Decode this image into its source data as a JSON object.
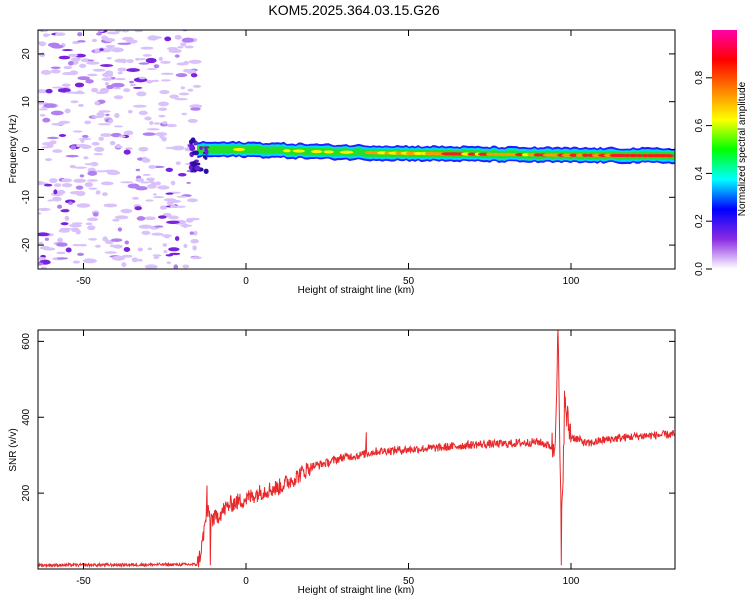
{
  "title": "KOM5.2025.364.03.15.G26",
  "chart_data": [
    {
      "type": "heatmap",
      "xlabel": "Height of straight line (km)",
      "ylabel": "Frequency (Hz)",
      "xlim": [
        -64,
        132
      ],
      "ylim": [
        -25,
        25
      ],
      "xticks": [
        -50,
        0,
        50,
        100
      ],
      "yticks": [
        -20,
        -10,
        0,
        10,
        20
      ],
      "grid": false,
      "colorbar": {
        "label": "Normalized spectral amplitude",
        "range": [
          0,
          1
        ],
        "ticks": [
          "0.0",
          "0.2",
          "0.4",
          "0.6",
          "0.8"
        ],
        "colors": [
          "#ffffff",
          "#8a2be2",
          "#0000ff",
          "#00ffff",
          "#00ff00",
          "#ffff00",
          "#ff8000",
          "#ff0000",
          "#ff00aa"
        ]
      },
      "ridge": {
        "start_km": -15,
        "points": [
          [
            -15,
            0.0
          ],
          [
            0,
            0.0
          ],
          [
            25,
            -0.5
          ],
          [
            50,
            -0.8
          ],
          [
            75,
            -1.0
          ],
          [
            100,
            -1.2
          ],
          [
            132,
            -1.3
          ]
        ],
        "width_hz": 1.6
      },
      "noise_region_km": [
        -64,
        -15
      ]
    },
    {
      "type": "line",
      "xlabel": "Height of straight line (km)",
      "ylabel": "SNR (v/v)",
      "xlim": [
        -64,
        132
      ],
      "ylim": [
        0,
        630
      ],
      "xticks": [
        -50,
        0,
        50,
        100
      ],
      "yticks": [
        200,
        400,
        600
      ],
      "grid": false,
      "color": "#e8282a",
      "envelope": {
        "x": [
          -64,
          -15,
          -14,
          -12,
          -10,
          -5,
          0,
          5,
          10,
          15,
          20,
          25,
          30,
          35,
          40,
          50,
          60,
          70,
          80,
          90,
          95,
          96,
          97,
          98,
          100,
          105,
          110,
          120,
          132
        ],
        "y": [
          10,
          12,
          40,
          150,
          130,
          170,
          185,
          205,
          215,
          240,
          270,
          280,
          295,
          300,
          310,
          315,
          320,
          328,
          330,
          335,
          320,
          630,
          80,
          430,
          350,
          330,
          340,
          350,
          355
        ]
      },
      "events": [
        {
          "x": -12,
          "y": 220
        },
        {
          "x": -11,
          "y": 10
        },
        {
          "x": 37,
          "y": 360
        },
        {
          "x": 96,
          "y": 630
        },
        {
          "x": 97,
          "y": 10
        },
        {
          "x": 98,
          "y": 470
        }
      ]
    }
  ]
}
